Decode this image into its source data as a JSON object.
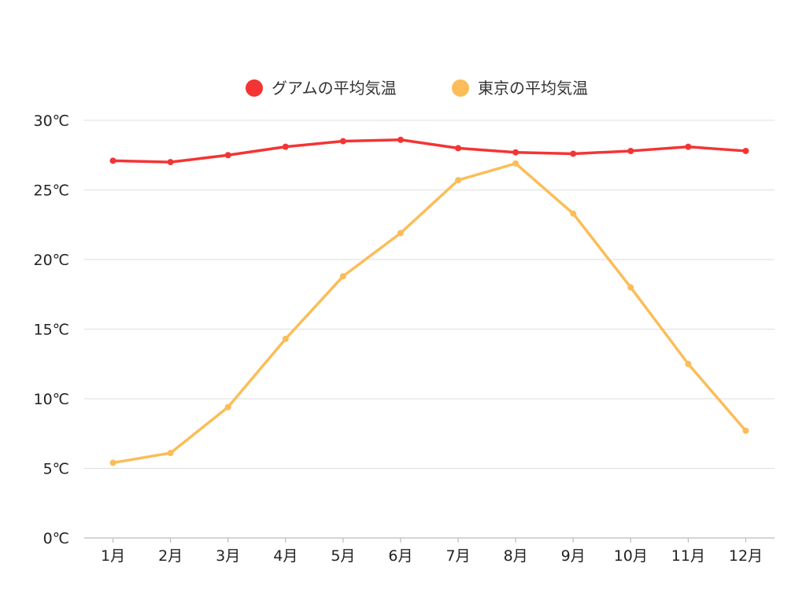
{
  "chart_data": {
    "type": "line",
    "title": "",
    "xlabel": "",
    "ylabel": "",
    "categories": [
      "1月",
      "2月",
      "3月",
      "4月",
      "5月",
      "6月",
      "7月",
      "8月",
      "9月",
      "10月",
      "11月",
      "12月"
    ],
    "ylim": [
      0,
      30
    ],
    "yticks": [
      0,
      5,
      10,
      15,
      20,
      25,
      30
    ],
    "y_unit": "℃",
    "grid": true,
    "legend_position": "top-center",
    "series": [
      {
        "name": "グアムの平均気温",
        "color": "#f43434",
        "values": [
          27.1,
          27.0,
          27.5,
          28.1,
          28.5,
          28.6,
          28.0,
          27.7,
          27.6,
          27.8,
          28.1,
          27.8
        ]
      },
      {
        "name": "東京の平均気温",
        "color": "#fbbd59",
        "values": [
          5.4,
          6.1,
          9.4,
          14.3,
          18.8,
          21.9,
          25.7,
          26.9,
          23.3,
          18.0,
          12.5,
          7.7
        ]
      }
    ]
  }
}
